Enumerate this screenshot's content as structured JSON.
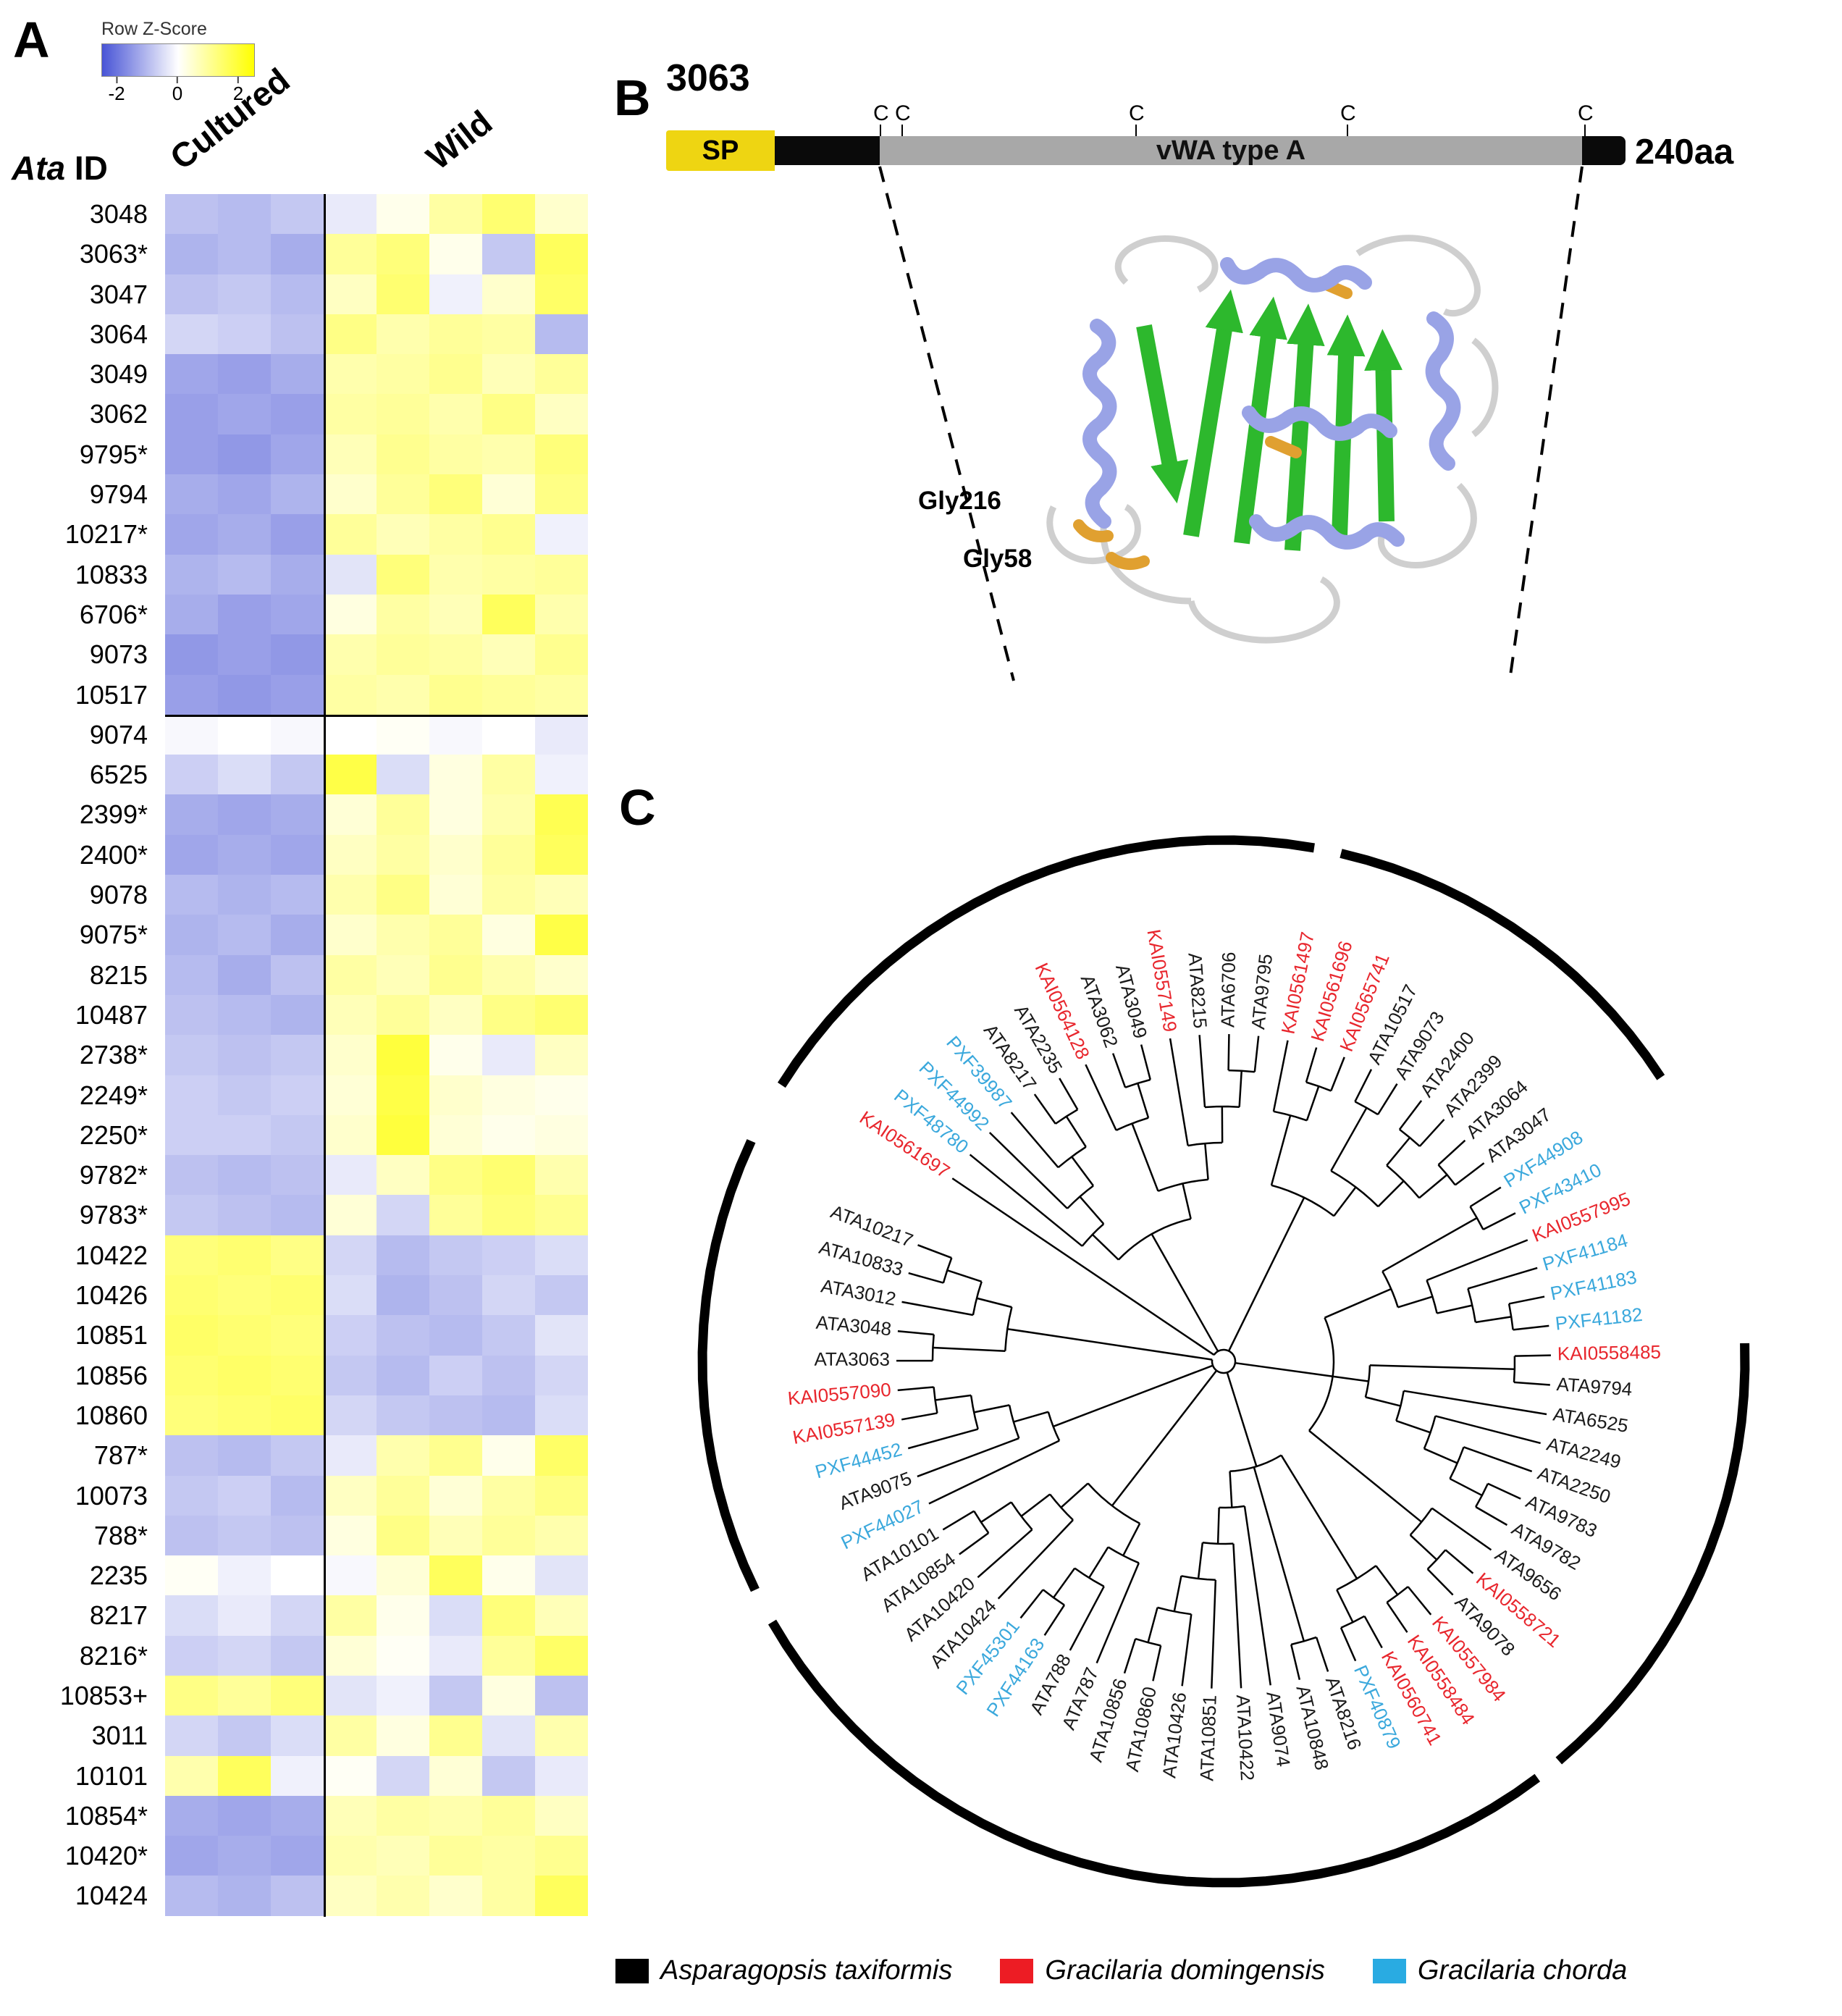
{
  "panelA": {
    "label": "A",
    "legend": {
      "title": "Row Z-Score",
      "ticks": [
        "-2",
        "0",
        "2"
      ]
    },
    "id_header": {
      "italic": "Ata",
      "rest": " ID"
    },
    "col_groups": [
      {
        "label": "Cultured",
        "cols": 3
      },
      {
        "label": "Wild",
        "cols": 5
      }
    ],
    "colors": {
      "negative": "#4854d6",
      "zero": "#ffffff",
      "positive": "#ffff00"
    },
    "separators_after_row_index": [
      12
    ],
    "rows": [
      {
        "id": "3048",
        "v": [
          -0.9,
          -1.0,
          -0.8,
          -0.3,
          0.2,
          0.9,
          1.4,
          0.5
        ]
      },
      {
        "id": "3063*",
        "v": [
          -1.1,
          -1.0,
          -1.2,
          1.0,
          1.3,
          0.2,
          -0.8,
          1.6
        ]
      },
      {
        "id": "3047",
        "v": [
          -0.9,
          -0.8,
          -1.0,
          0.6,
          1.4,
          -0.2,
          0.5,
          1.5
        ]
      },
      {
        "id": "3064",
        "v": [
          -0.6,
          -0.7,
          -0.9,
          1.2,
          0.8,
          1.0,
          0.9,
          -1.0
        ]
      },
      {
        "id": "3049",
        "v": [
          -1.3,
          -1.4,
          -1.2,
          0.8,
          0.9,
          1.1,
          0.7,
          1.0
        ]
      },
      {
        "id": "3062",
        "v": [
          -1.4,
          -1.3,
          -1.4,
          0.9,
          1.0,
          0.8,
          1.2,
          0.6
        ]
      },
      {
        "id": "9795*",
        "v": [
          -1.4,
          -1.5,
          -1.3,
          0.7,
          1.1,
          0.9,
          0.8,
          1.3
        ]
      },
      {
        "id": "9794",
        "v": [
          -1.2,
          -1.3,
          -1.1,
          0.5,
          1.0,
          1.3,
          0.4,
          1.2
        ]
      },
      {
        "id": "10217*",
        "v": [
          -1.3,
          -1.2,
          -1.4,
          1.0,
          0.7,
          0.9,
          1.1,
          -0.2
        ]
      },
      {
        "id": "10833",
        "v": [
          -1.1,
          -1.0,
          -1.2,
          -0.4,
          1.3,
          0.8,
          0.9,
          1.0
        ]
      },
      {
        "id": "6706*",
        "v": [
          -1.2,
          -1.4,
          -1.3,
          0.3,
          0.9,
          0.7,
          1.6,
          0.8
        ]
      },
      {
        "id": "9073",
        "v": [
          -1.5,
          -1.4,
          -1.5,
          0.8,
          1.0,
          0.9,
          0.7,
          1.1
        ]
      },
      {
        "id": "10517",
        "v": [
          -1.4,
          -1.5,
          -1.4,
          0.9,
          0.8,
          1.1,
          1.0,
          0.9
        ]
      },
      {
        "id": "9074",
        "v": [
          -0.1,
          0.0,
          -0.1,
          0.0,
          0.1,
          -0.1,
          0.0,
          -0.3
        ]
      },
      {
        "id": "6525",
        "v": [
          -0.7,
          -0.5,
          -0.8,
          1.8,
          -0.5,
          0.3,
          0.9,
          -0.2
        ]
      },
      {
        "id": "2399*",
        "v": [
          -1.2,
          -1.3,
          -1.2,
          0.4,
          1.0,
          0.3,
          0.8,
          1.7
        ]
      },
      {
        "id": "2400*",
        "v": [
          -1.3,
          -1.2,
          -1.3,
          0.6,
          0.9,
          0.5,
          1.0,
          1.6
        ]
      },
      {
        "id": "9078",
        "v": [
          -1.0,
          -1.1,
          -1.0,
          0.8,
          1.2,
          0.4,
          0.9,
          0.7
        ]
      },
      {
        "id": "9075*",
        "v": [
          -1.1,
          -1.0,
          -1.2,
          0.5,
          0.8,
          1.0,
          0.3,
          1.8
        ]
      },
      {
        "id": "8215",
        "v": [
          -1.0,
          -1.2,
          -0.9,
          0.9,
          0.7,
          1.1,
          0.8,
          0.5
        ]
      },
      {
        "id": "10487",
        "v": [
          -0.9,
          -1.0,
          -1.1,
          0.7,
          1.0,
          0.6,
          1.2,
          1.4
        ]
      },
      {
        "id": "2738*",
        "v": [
          -0.8,
          -0.9,
          -0.8,
          0.5,
          1.9,
          0.2,
          -0.3,
          0.6
        ]
      },
      {
        "id": "2249*",
        "v": [
          -0.7,
          -0.8,
          -0.7,
          0.4,
          1.8,
          0.5,
          0.3,
          0.2
        ]
      },
      {
        "id": "2250*",
        "v": [
          -0.7,
          -0.7,
          -0.8,
          0.5,
          1.9,
          0.4,
          0.2,
          0.3
        ]
      },
      {
        "id": "9782*",
        "v": [
          -0.9,
          -1.0,
          -0.9,
          -0.3,
          0.6,
          1.2,
          1.4,
          0.8
        ]
      },
      {
        "id": "9783*",
        "v": [
          -0.8,
          -0.9,
          -1.0,
          0.4,
          -0.6,
          1.0,
          1.3,
          1.1
        ]
      },
      {
        "id": "10422",
        "v": [
          1.3,
          1.4,
          1.2,
          -0.6,
          -1.0,
          -0.8,
          -0.7,
          -0.5
        ]
      },
      {
        "id": "10426",
        "v": [
          1.4,
          1.3,
          1.4,
          -0.5,
          -1.1,
          -0.9,
          -0.6,
          -0.8
        ]
      },
      {
        "id": "10851",
        "v": [
          1.5,
          1.4,
          1.3,
          -0.7,
          -0.9,
          -1.0,
          -0.8,
          -0.4
        ]
      },
      {
        "id": "10856",
        "v": [
          1.4,
          1.5,
          1.4,
          -0.8,
          -1.0,
          -0.7,
          -0.9,
          -0.6
        ]
      },
      {
        "id": "10860",
        "v": [
          1.3,
          1.4,
          1.5,
          -0.6,
          -0.8,
          -0.9,
          -1.0,
          -0.5
        ]
      },
      {
        "id": "787*",
        "v": [
          -0.9,
          -1.0,
          -0.8,
          -0.3,
          0.8,
          1.1,
          0.2,
          1.5
        ]
      },
      {
        "id": "10073",
        "v": [
          -0.8,
          -0.7,
          -1.0,
          0.6,
          1.0,
          0.4,
          0.9,
          1.2
        ]
      },
      {
        "id": "788*",
        "v": [
          -0.9,
          -0.8,
          -0.9,
          0.3,
          1.2,
          0.7,
          1.0,
          0.8
        ]
      },
      {
        "id": "2235",
        "v": [
          0.1,
          -0.2,
          0.0,
          -0.1,
          0.4,
          1.6,
          0.2,
          -0.4
        ]
      },
      {
        "id": "8217",
        "v": [
          -0.5,
          -0.3,
          -0.6,
          0.9,
          0.2,
          -0.5,
          1.3,
          0.7
        ]
      },
      {
        "id": "8216*",
        "v": [
          -0.7,
          -0.6,
          -0.8,
          0.4,
          0.1,
          -0.3,
          1.0,
          1.5
        ]
      },
      {
        "id": "10853+",
        "v": [
          1.2,
          1.0,
          1.3,
          -0.4,
          -0.2,
          -0.8,
          0.3,
          -0.9
        ]
      },
      {
        "id": "3011",
        "v": [
          -0.6,
          -0.8,
          -0.5,
          0.9,
          0.3,
          1.1,
          -0.4,
          0.8
        ]
      },
      {
        "id": "10101",
        "v": [
          0.8,
          1.6,
          -0.2,
          0.1,
          -0.6,
          0.4,
          -0.8,
          -0.3
        ]
      },
      {
        "id": "10854*",
        "v": [
          -1.2,
          -1.3,
          -1.2,
          0.7,
          0.9,
          0.8,
          1.0,
          0.6
        ]
      },
      {
        "id": "10420*",
        "v": [
          -1.3,
          -1.2,
          -1.3,
          0.8,
          0.7,
          1.0,
          0.9,
          1.1
        ]
      },
      {
        "id": "10424",
        "v": [
          -1.0,
          -1.1,
          -0.9,
          0.6,
          0.8,
          0.5,
          0.9,
          1.6
        ]
      }
    ]
  },
  "panelB": {
    "label": "B",
    "gene": "3063",
    "length_label": "240aa",
    "sp_label": "SP",
    "vwa_label": "vWA type A",
    "cys_label": "C",
    "cys_offsets": [
      295,
      325,
      648,
      940,
      1268
    ],
    "residues": [
      "Gly216",
      "Gly58"
    ],
    "structure_colors": {
      "helix": "#99a3e6",
      "strand": "#2db82d",
      "loop": "#cfcfcf",
      "site": "#e0a030"
    }
  },
  "panelC": {
    "label": "C",
    "species_colors": {
      "ATA": "#1a1a1a",
      "KAI": "#e8262d",
      "PXF": "#3aa8dc"
    },
    "outer_arcs": [
      [
        302,
        10
      ],
      [
        13,
        57
      ],
      [
        88,
        140
      ],
      [
        143,
        240
      ],
      [
        244,
        295
      ]
    ],
    "legend": [
      {
        "color": "#000000",
        "label": "Asparagopsis taxiformis"
      },
      {
        "color": "#ed1c24",
        "label": "Gracilaria domingensis"
      },
      {
        "color": "#29abe2",
        "label": "Gracilaria chorda"
      }
    ],
    "tree": [
      "KAI0561697",
      [
        [
          "PXF48780",
          [
            "PXF44992",
            [
              "PXF39987",
              [
                "ATA8217",
                "ATA2235"
              ]
            ]
          ]
        ],
        [
          [
            "KAI0564128",
            [
              "ATA3062",
              "ATA3049"
            ]
          ],
          [
            "KAI0557149",
            [
              "ATA8215",
              [
                "ATA6706",
                "ATA9795"
              ]
            ]
          ]
        ]
      ],
      [
        [
          "KAI0561497",
          [
            "KAI0561696",
            "KAI0565741"
          ]
        ],
        [
          [
            "ATA10517",
            "ATA9073"
          ],
          [
            [
              "ATA2400",
              "ATA2399"
            ],
            [
              "ATA3064",
              "ATA3047"
            ]
          ]
        ]
      ],
      [
        [
          [
            "PXF44908",
            "PXF43410"
          ],
          [
            "KAI0557995",
            [
              "PXF41184",
              [
                "PXF41183",
                "PXF41182"
              ]
            ]
          ]
        ],
        [
          [
            "KAI0558485",
            "ATA9794"
          ],
          [
            "ATA6525",
            [
              "ATA2249",
              [
                "ATA2250",
                [
                  "ATA9783",
                  "ATA9782"
                ]
              ]
            ]
          ]
        ],
        [
          "ATA9656",
          [
            "KAI0558721",
            "ATA9078"
          ]
        ]
      ],
      [
        [
          [
            "KAI0557984",
            "KAI0558484"
          ],
          [
            "KAI0560741",
            "PXF40879"
          ]
        ],
        [
          "ATA8216",
          "ATA10848"
        ],
        [
          "ATA9074",
          [
            "ATA10422",
            [
              "ATA10851",
              [
                "ATA10426",
                [
                  "ATA10860",
                  "ATA10856"
                ]
              ]
            ]
          ]
        ]
      ],
      [
        [
          "ATA787",
          [
            "ATA788",
            [
              "PXF44163",
              "PXF45301"
            ]
          ]
        ],
        [
          "ATA10424",
          [
            "ATA10420",
            [
              "ATA10854",
              "ATA10101"
            ]
          ]
        ]
      ],
      [
        "PXF44027",
        [
          "ATA9075",
          [
            "PXF44452",
            [
              "KAI0557139",
              "KAI0557090"
            ]
          ]
        ]
      ],
      [
        [
          "ATA3063",
          "ATA3048"
        ],
        [
          "ATA3012",
          [
            "ATA10833",
            "ATA10217"
          ]
        ]
      ]
    ]
  }
}
